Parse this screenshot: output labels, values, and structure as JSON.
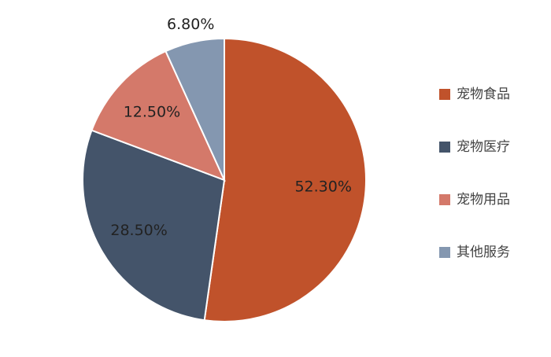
{
  "chart_data": {
    "type": "pie",
    "categories": [
      "宠物食品",
      "宠物医疗",
      "宠物用品",
      "其他服务"
    ],
    "values": [
      52.3,
      28.5,
      12.5,
      6.8
    ],
    "value_labels": [
      "52.30%",
      "28.50%",
      "12.50%",
      "6.80%"
    ],
    "colors": [
      "#c0522b",
      "#44546a",
      "#d4796a",
      "#8497b0"
    ],
    "legend": "right"
  }
}
